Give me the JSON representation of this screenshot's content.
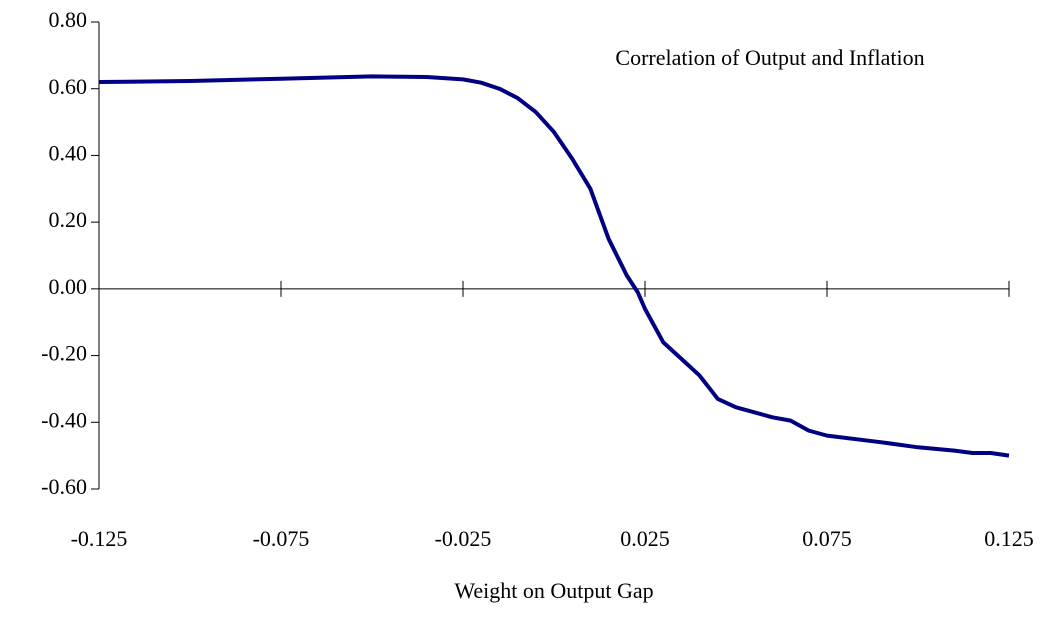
{
  "chart_data": {
    "type": "line",
    "annotation": "Correlation of Output and Inflation",
    "x_label": "Weight on Output Gap",
    "x": [
      -0.125,
      -0.1,
      -0.075,
      -0.05,
      -0.035,
      -0.025,
      -0.02,
      -0.015,
      -0.01,
      -0.005,
      0,
      0.005,
      0.01,
      0.015,
      0.02,
      0.023,
      0.025,
      0.03,
      0.035,
      0.04,
      0.045,
      0.05,
      0.06,
      0.065,
      0.07,
      0.075,
      0.09,
      0.1,
      0.11,
      0.115,
      0.12,
      0.125
    ],
    "series": [
      {
        "name": "Correlation of Output and Inflation",
        "color": "#000080",
        "values": [
          0.62,
          0.623,
          0.63,
          0.637,
          0.635,
          0.628,
          0.618,
          0.6,
          0.572,
          0.53,
          0.47,
          0.39,
          0.3,
          0.15,
          0.04,
          -0.01,
          -0.06,
          -0.16,
          -0.21,
          -0.26,
          -0.33,
          -0.355,
          -0.385,
          -0.395,
          -0.425,
          -0.44,
          -0.46,
          -0.475,
          -0.485,
          -0.492,
          -0.492,
          -0.5
        ]
      }
    ],
    "xlim": [
      -0.125,
      0.125
    ],
    "xticks": [
      -0.125,
      -0.075,
      -0.025,
      0.025,
      0.075,
      0.125
    ],
    "ylim": [
      -0.6,
      0.8
    ],
    "yticks": [
      {
        "value": 0.8,
        "label": "0.80"
      },
      {
        "value": 0.6,
        "label": "0.60"
      },
      {
        "value": 0.4,
        "label": "0.40"
      },
      {
        "value": 0.2,
        "label": "0.20"
      },
      {
        "value": 0,
        "label": "0.00"
      },
      {
        "value": -0.2,
        "label": "-0.20"
      },
      {
        "value": -0.4,
        "label": "-0.40"
      },
      {
        "value": -0.6,
        "label": "-0.60"
      }
    ],
    "grid": false
  }
}
